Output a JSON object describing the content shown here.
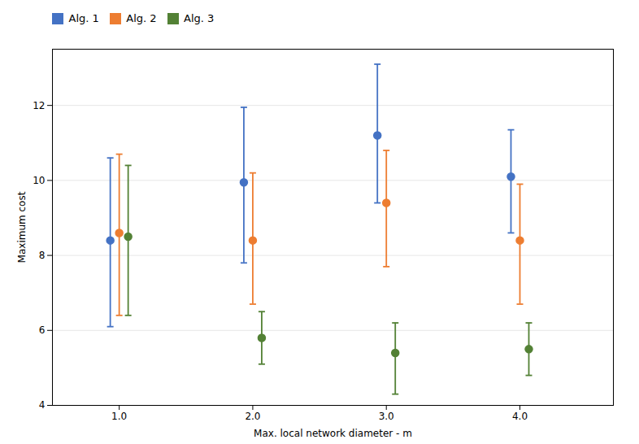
{
  "chart_data": {
    "type": "errorbar",
    "x": [
      1,
      2,
      3,
      4
    ],
    "series": [
      {
        "name": "Alg. 1",
        "color": "#4472C4",
        "values": [
          8.4,
          9.95,
          11.2,
          10.1
        ],
        "low": [
          6.1,
          7.8,
          9.4,
          8.6
        ],
        "high": [
          10.6,
          11.95,
          13.1,
          11.35
        ]
      },
      {
        "name": "Alg. 2",
        "color": "#ED7D31",
        "values": [
          8.6,
          8.4,
          9.4,
          8.4
        ],
        "low": [
          6.4,
          6.7,
          7.7,
          6.7
        ],
        "high": [
          10.7,
          10.2,
          10.8,
          9.9
        ]
      },
      {
        "name": "Alg. 3",
        "color": "#538135",
        "values": [
          8.5,
          5.8,
          5.4,
          5.5
        ],
        "low": [
          6.4,
          5.1,
          4.3,
          4.8
        ],
        "high": [
          10.4,
          6.5,
          6.2,
          6.2
        ]
      }
    ],
    "xlabel": "Max. local network diameter - m",
    "ylabel": "Maximum cost",
    "xlim": [
      0.5,
      4.7
    ],
    "ylim": [
      4,
      13.5
    ],
    "xticks": [
      1,
      2,
      3,
      4
    ],
    "yticks": [
      4,
      6,
      8,
      10,
      12
    ],
    "grid": true,
    "legend": "upper left",
    "marker": "circle"
  }
}
